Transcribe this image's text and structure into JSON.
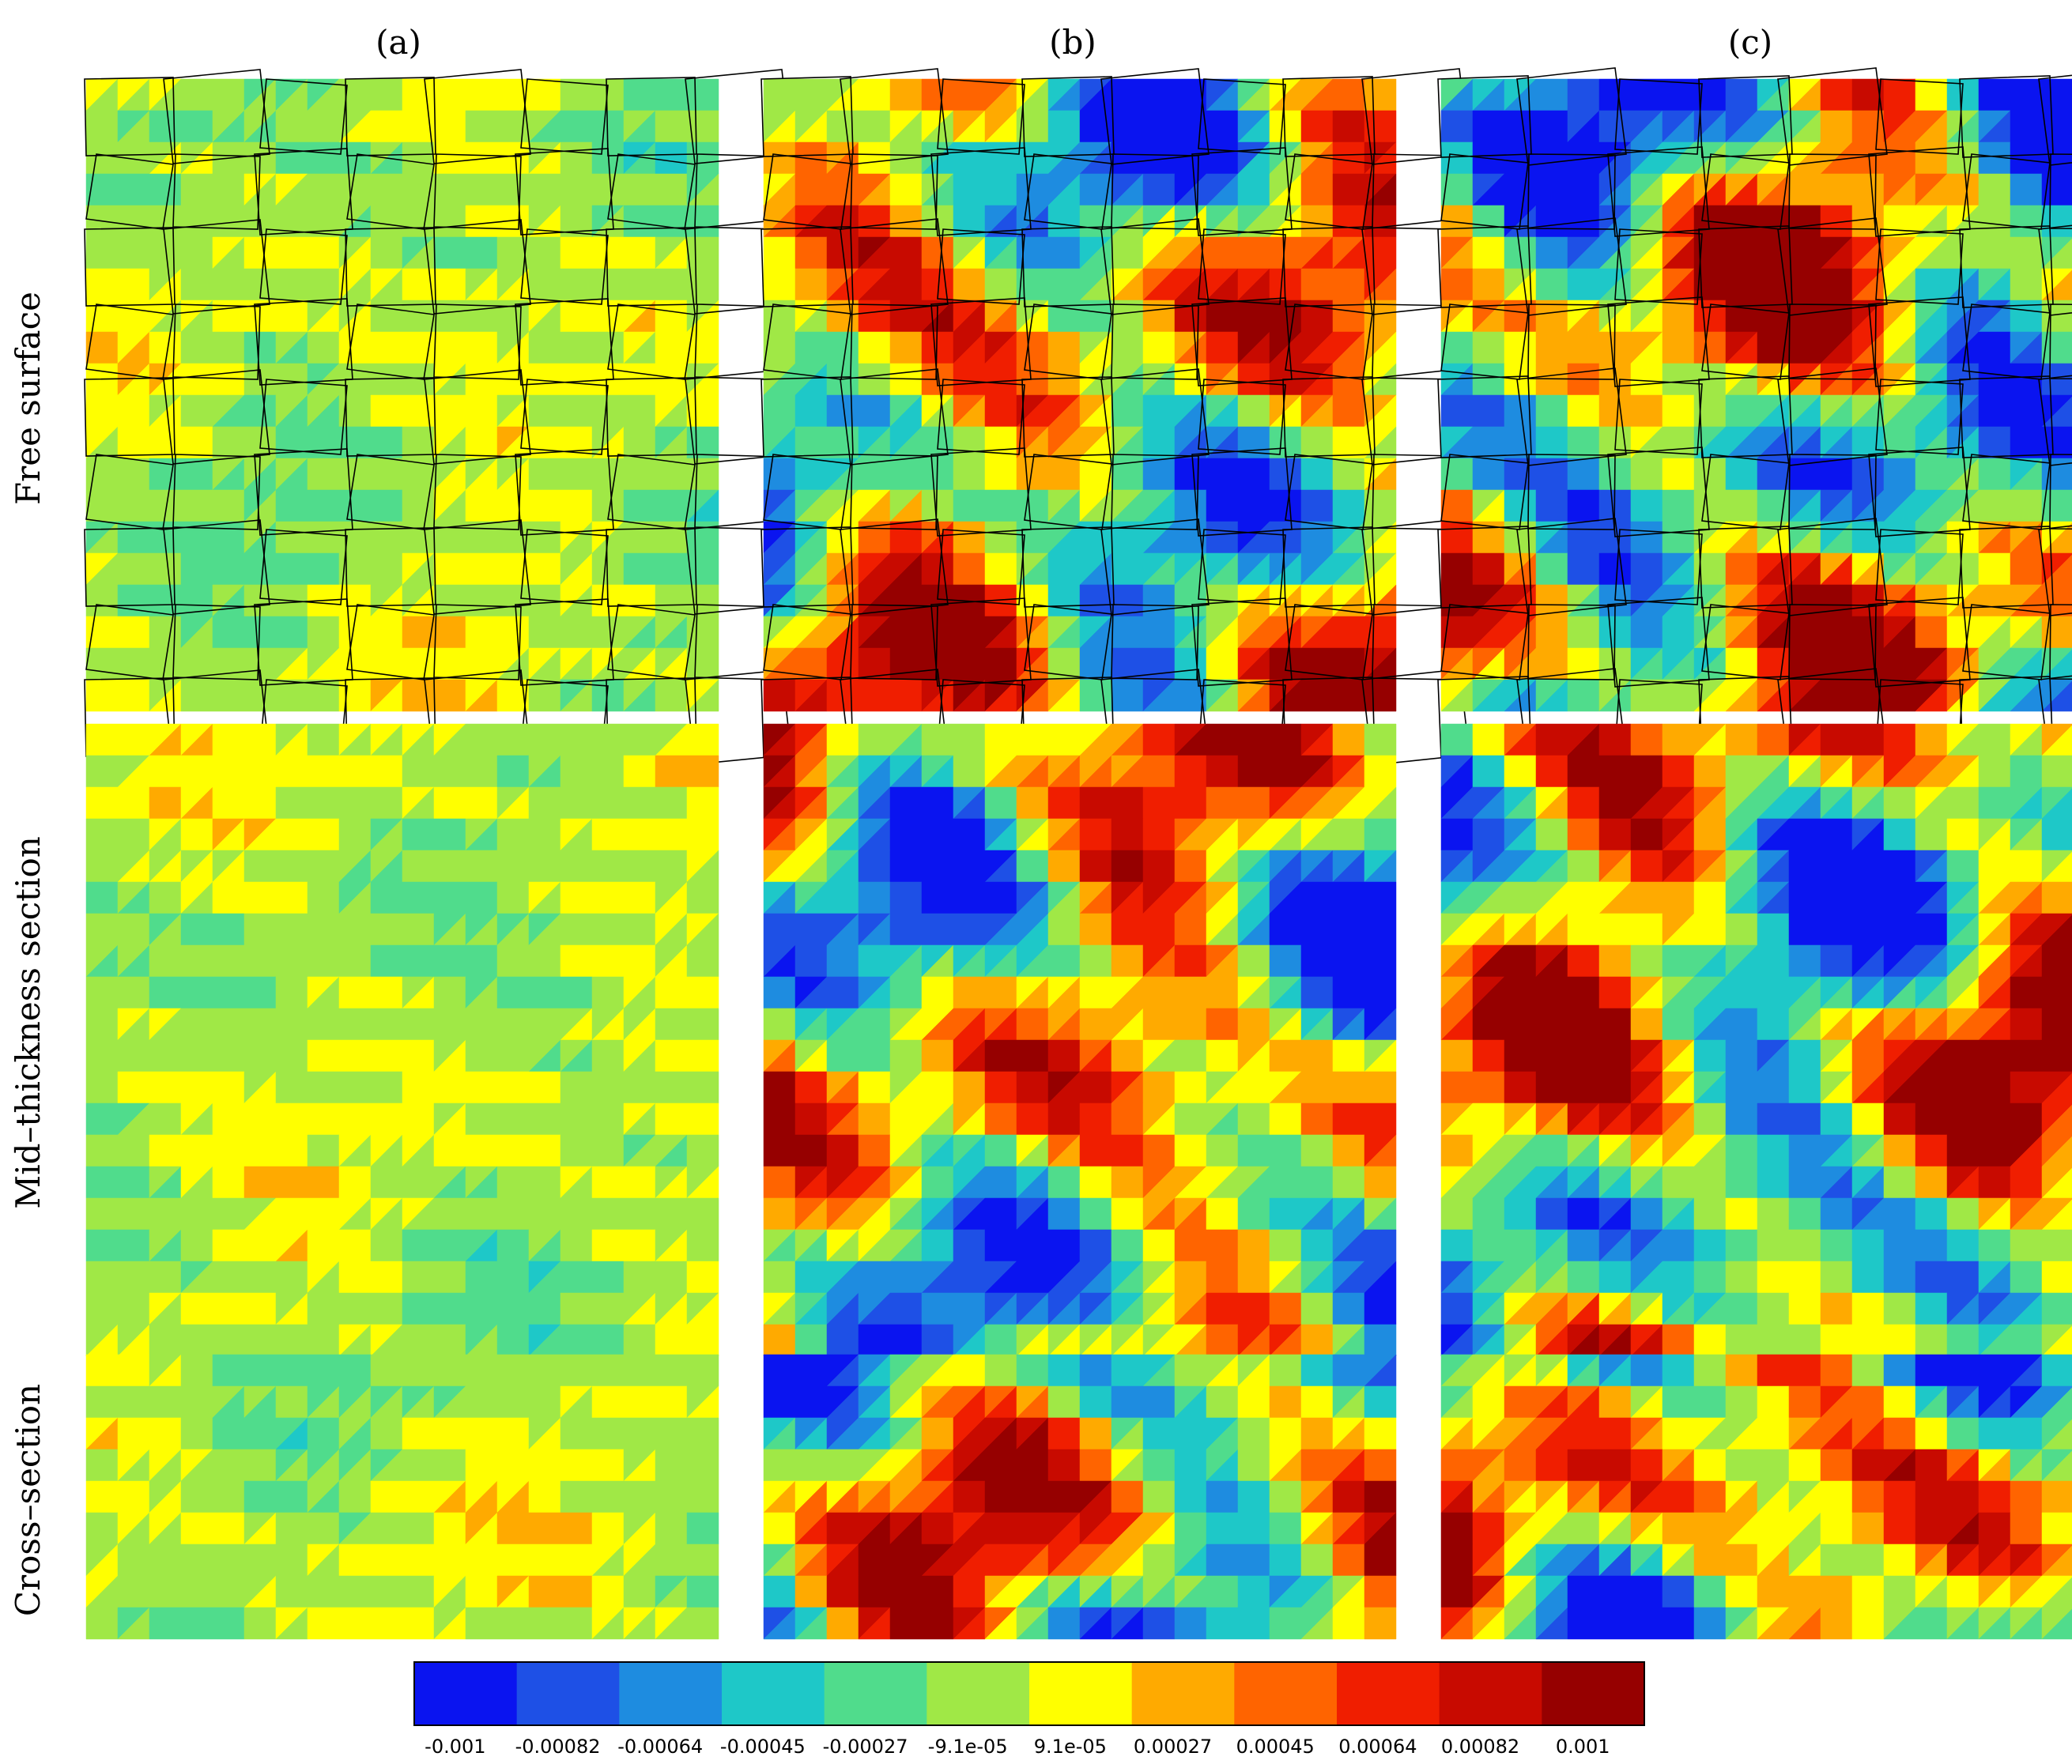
{
  "columns": [
    "(a)",
    "(b)",
    "(c)"
  ],
  "rows": [
    "Free surface",
    "Mid–thickness section",
    "Cross–section"
  ],
  "colorbar": {
    "colors": [
      "#0a14f0",
      "#1e50e6",
      "#1e8ce0",
      "#1ec8c8",
      "#50dc8c",
      "#a0e846",
      "#ffff00",
      "#ffaa00",
      "#ff6400",
      "#f01e00",
      "#c80a00",
      "#960000"
    ],
    "labels": [
      "-0.001",
      "-0.00082",
      "-0.00064",
      "-0.00045",
      "-0.00027",
      "-9.1e-05",
      "9.1e-05",
      "0.00027",
      "0.00045",
      "0.00064",
      "0.00082",
      "0.001"
    ]
  }
}
